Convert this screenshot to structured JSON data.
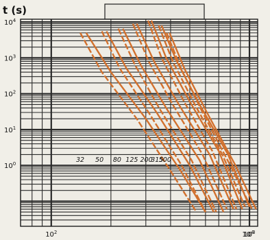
{
  "chart_data": {
    "type": "line",
    "title": "",
    "ylabel": "t (s)",
    "xlabel": "",
    "x_scale": "log",
    "y_scale": "log",
    "xlim": [
      70,
      1100
    ],
    "ylim": [
      0.02,
      12000
    ],
    "x_ticks": [
      {
        "value": 100,
        "label": "10",
        "exp": "2"
      },
      {
        "value": 1000,
        "label": "10",
        "exp": "3"
      },
      {
        "value": 10000,
        "label": "10",
        "exp": "4"
      }
    ],
    "y_ticks": [
      {
        "value": 10000,
        "label": "10",
        "exp": "4"
      },
      {
        "value": 1000,
        "label": "10",
        "exp": "3"
      },
      {
        "value": 100,
        "label": "10",
        "exp": "2"
      },
      {
        "value": 10,
        "label": "10",
        "exp": "1"
      },
      {
        "value": 1,
        "label": "10",
        "exp": "0"
      }
    ],
    "grid": true,
    "curve_color": "#d2712e",
    "series": [
      {
        "name": "32",
        "label": "32",
        "label_at": {
          "x": 140,
          "y": 1.25
        },
        "max": [
          {
            "x": 150,
            "y": 5000
          },
          {
            "x": 200,
            "y": 400
          },
          {
            "x": 300,
            "y": 20
          },
          {
            "x": 450,
            "y": 0.7
          },
          {
            "x": 600,
            "y": 0.05
          }
        ],
        "min": [
          {
            "x": 140,
            "y": 5000
          },
          {
            "x": 180,
            "y": 400
          },
          {
            "x": 270,
            "y": 20
          },
          {
            "x": 400,
            "y": 0.7
          },
          {
            "x": 540,
            "y": 0.05
          }
        ]
      },
      {
        "name": "50",
        "label": "50",
        "label_at": {
          "x": 175,
          "y": 1.25
        },
        "max": [
          {
            "x": 190,
            "y": 5500
          },
          {
            "x": 240,
            "y": 500
          },
          {
            "x": 340,
            "y": 30
          },
          {
            "x": 500,
            "y": 1
          },
          {
            "x": 660,
            "y": 0.05
          }
        ],
        "min": [
          {
            "x": 180,
            "y": 5500
          },
          {
            "x": 222,
            "y": 500
          },
          {
            "x": 310,
            "y": 30
          },
          {
            "x": 455,
            "y": 1
          },
          {
            "x": 600,
            "y": 0.05
          }
        ]
      },
      {
        "name": "80",
        "label": "80",
        "label_at": {
          "x": 215,
          "y": 1.25
        },
        "max": [
          {
            "x": 230,
            "y": 6500
          },
          {
            "x": 282,
            "y": 650
          },
          {
            "x": 380,
            "y": 40
          },
          {
            "x": 560,
            "y": 1.4
          },
          {
            "x": 740,
            "y": 0.05
          }
        ],
        "min": [
          {
            "x": 218,
            "y": 6500
          },
          {
            "x": 264,
            "y": 650
          },
          {
            "x": 350,
            "y": 40
          },
          {
            "x": 510,
            "y": 1.4
          },
          {
            "x": 680,
            "y": 0.05
          }
        ]
      },
      {
        "name": "125",
        "label": "125",
        "label_at": {
          "x": 255,
          "y": 1.25
        },
        "max": [
          {
            "x": 270,
            "y": 9000
          },
          {
            "x": 330,
            "y": 800
          },
          {
            "x": 440,
            "y": 50
          },
          {
            "x": 630,
            "y": 2
          },
          {
            "x": 830,
            "y": 0.06
          }
        ],
        "min": [
          {
            "x": 258,
            "y": 9000
          },
          {
            "x": 310,
            "y": 800
          },
          {
            "x": 410,
            "y": 50
          },
          {
            "x": 580,
            "y": 2
          },
          {
            "x": 770,
            "y": 0.06
          }
        ]
      },
      {
        "name": "200",
        "label": "200",
        "label_at": {
          "x": 302,
          "y": 1.25
        },
        "max": [
          {
            "x": 320,
            "y": 11000
          },
          {
            "x": 380,
            "y": 1000
          },
          {
            "x": 500,
            "y": 60
          },
          {
            "x": 700,
            "y": 2.5
          },
          {
            "x": 920,
            "y": 0.06
          }
        ],
        "min": [
          {
            "x": 308,
            "y": 11000
          },
          {
            "x": 360,
            "y": 1000
          },
          {
            "x": 468,
            "y": 60
          },
          {
            "x": 650,
            "y": 2.5
          },
          {
            "x": 860,
            "y": 0.06
          }
        ]
      },
      {
        "name": "315",
        "label": "315",
        "label_at": {
          "x": 342,
          "y": 1.25
        },
        "max": [
          {
            "x": 360,
            "y": 8000
          },
          {
            "x": 430,
            "y": 800
          },
          {
            "x": 560,
            "y": 50
          },
          {
            "x": 780,
            "y": 2
          },
          {
            "x": 1000,
            "y": 0.07
          }
        ],
        "min": [
          {
            "x": 348,
            "y": 8000
          },
          {
            "x": 410,
            "y": 800
          },
          {
            "x": 530,
            "y": 50
          },
          {
            "x": 730,
            "y": 2
          },
          {
            "x": 950,
            "y": 0.07
          }
        ]
      },
      {
        "name": "500",
        "label": "500",
        "label_at": {
          "x": 375,
          "y": 1.25
        },
        "max": [
          {
            "x": 395,
            "y": 5000
          },
          {
            "x": 470,
            "y": 500
          },
          {
            "x": 610,
            "y": 30
          },
          {
            "x": 850,
            "y": 1
          },
          {
            "x": 1080,
            "y": 0.06
          }
        ],
        "min": [
          {
            "x": 382,
            "y": 5000
          },
          {
            "x": 452,
            "y": 500
          },
          {
            "x": 580,
            "y": 30
          },
          {
            "x": 800,
            "y": 1
          },
          {
            "x": 1030,
            "y": 0.06
          }
        ]
      }
    ]
  }
}
